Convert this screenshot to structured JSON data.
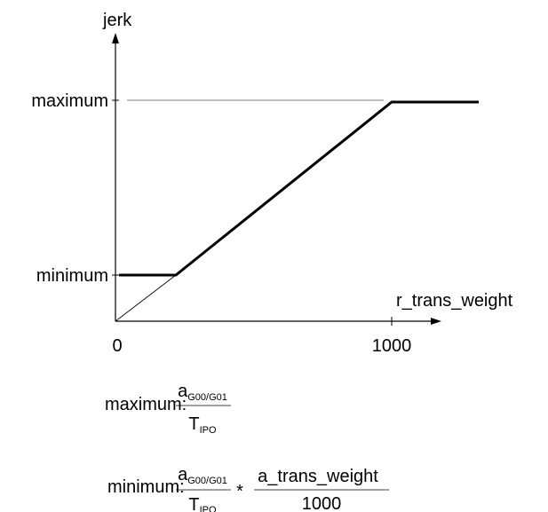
{
  "chart": {
    "y_axis_label": "jerk",
    "x_axis_label": "r_trans_weight",
    "y_ticks": [
      "maximum",
      "minimum"
    ],
    "x_ticks": [
      "0",
      "1000"
    ]
  },
  "chart_data": {
    "type": "line",
    "xlabel": "r_trans_weight",
    "ylabel": "jerk",
    "series": [
      {
        "x": [
          0,
          210,
          1000,
          1300
        ],
        "y": [
          "minimum",
          "minimum",
          "maximum",
          "maximum"
        ]
      }
    ]
  },
  "formulas": {
    "maximum": {
      "label": "maximum:",
      "numerator_base": "a",
      "numerator_sub": "G00/G01",
      "denominator_base": "T",
      "denominator_sub": "IPO"
    },
    "minimum": {
      "label": "minimum:",
      "numerator_base": "a",
      "numerator_sub": "G00/G01",
      "denominator_base": "T",
      "denominator_sub": "IPO",
      "operator": "*",
      "numerator2": "a_trans_weight",
      "denominator2": "1000"
    }
  }
}
